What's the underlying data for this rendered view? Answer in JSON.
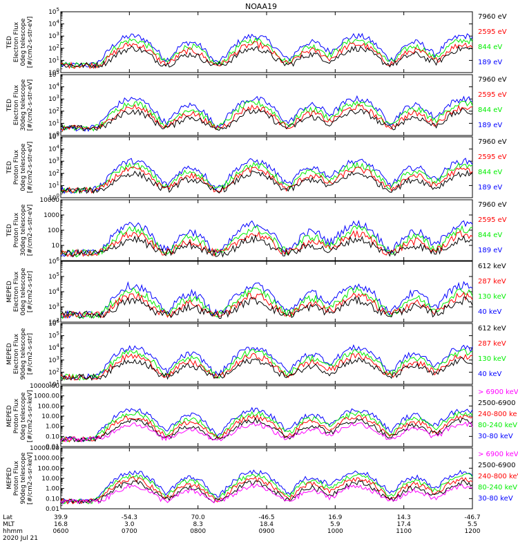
{
  "title": "NOAA19",
  "colors": {
    "black": "#000000",
    "red": "#ff0000",
    "green": "#00ee00",
    "blue": "#0000ff",
    "magenta": "#ff00ff"
  },
  "chart_data": [
    {
      "type": "line",
      "ylabel": [
        "TED",
        "Electron Flux",
        "0deg telescope",
        "[#/cm2-s-str-eV]"
      ],
      "yscale": "log",
      "ylim": [
        1,
        100000
      ],
      "ticks": [
        {
          "v": 1,
          "t": "10",
          "s": "0"
        },
        {
          "v": 10,
          "t": "10",
          "s": "1"
        },
        {
          "v": 100,
          "t": "10",
          "s": "2"
        },
        {
          "v": 1000,
          "t": "10",
          "s": "3"
        },
        {
          "v": 10000,
          "t": "10",
          "s": "4"
        },
        {
          "v": 100000,
          "t": "10",
          "s": "5"
        }
      ],
      "series": [
        {
          "name": "7960 eV",
          "color": "black"
        },
        {
          "name": "2595 eV",
          "color": "red"
        },
        {
          "name": "844 eV",
          "color": "green"
        },
        {
          "name": "189 eV",
          "color": "blue"
        }
      ]
    },
    {
      "type": "line",
      "ylabel": [
        "TED",
        "Electron Flux",
        "30deg telescope",
        "[#/cm2-s-str-eV]"
      ],
      "yscale": "log",
      "ylim": [
        1,
        100000
      ],
      "ticks": [
        {
          "v": 1,
          "t": "10",
          "s": "0"
        },
        {
          "v": 10,
          "t": "10",
          "s": "1"
        },
        {
          "v": 100,
          "t": "10",
          "s": "2"
        },
        {
          "v": 1000,
          "t": "10",
          "s": "3"
        },
        {
          "v": 10000,
          "t": "10",
          "s": "4"
        },
        {
          "v": 100000,
          "t": "10",
          "s": "5"
        }
      ],
      "series": [
        {
          "name": "7960 eV",
          "color": "black"
        },
        {
          "name": "2595 eV",
          "color": "red"
        },
        {
          "name": "844 eV",
          "color": "green"
        },
        {
          "name": "189 eV",
          "color": "blue"
        }
      ]
    },
    {
      "type": "line",
      "ylabel": [
        "TED",
        "Proton Flux",
        "0deg telescope",
        "[#/cm2-s-str-eV]"
      ],
      "yscale": "log",
      "ylim": [
        1,
        100000
      ],
      "ticks": [
        {
          "v": 1,
          "t": "10",
          "s": "0"
        },
        {
          "v": 10,
          "t": "10",
          "s": "1"
        },
        {
          "v": 100,
          "t": "10",
          "s": "2"
        },
        {
          "v": 1000,
          "t": "10",
          "s": "3"
        },
        {
          "v": 10000,
          "t": "10",
          "s": "4"
        },
        {
          "v": 100000,
          "t": "10",
          "s": "5"
        }
      ],
      "series": [
        {
          "name": "7960 eV",
          "color": "black"
        },
        {
          "name": "2595 eV",
          "color": "red"
        },
        {
          "name": "844 eV",
          "color": "green"
        },
        {
          "name": "189 eV",
          "color": "blue"
        }
      ]
    },
    {
      "type": "line",
      "ylabel": [
        "TED",
        "Proton Flux",
        "30deg telescope",
        "[#/cm2-s-str-eV]"
      ],
      "yscale": "log",
      "ylim": [
        1,
        10000
      ],
      "ticks": [
        {
          "v": 10,
          "t": "10",
          "s": ""
        },
        {
          "v": 100,
          "t": "100",
          "s": ""
        },
        {
          "v": 1000,
          "t": "1000",
          "s": ""
        },
        {
          "v": 10000,
          "t": "10000",
          "s": ""
        }
      ],
      "series": [
        {
          "name": "7960 eV",
          "color": "black"
        },
        {
          "name": "2595 eV",
          "color": "red"
        },
        {
          "name": "844 eV",
          "color": "green"
        },
        {
          "name": "189 eV",
          "color": "blue"
        }
      ]
    },
    {
      "type": "line",
      "ylabel": [
        "MEPED",
        "Electron Flux",
        "0deg telescope",
        "[#/cm2-s-str]"
      ],
      "yscale": "log",
      "ylim": [
        100,
        1000000
      ],
      "ticks": [
        {
          "v": 100,
          "t": "10",
          "s": "2"
        },
        {
          "v": 1000,
          "t": "10",
          "s": "3"
        },
        {
          "v": 10000,
          "t": "10",
          "s": "4"
        },
        {
          "v": 100000,
          "t": "10",
          "s": "5"
        },
        {
          "v": 1000000,
          "t": "10",
          "s": "6"
        }
      ],
      "series": [
        {
          "name": "612 keV",
          "color": "black"
        },
        {
          "name": "287 keV",
          "color": "red"
        },
        {
          "name": "130 keV",
          "color": "green"
        },
        {
          "name": "40 keV",
          "color": "blue"
        }
      ]
    },
    {
      "type": "line",
      "ylabel": [
        "MEPED",
        "Electron Flux",
        "90deg telescope",
        "[#/cm2-s-str]"
      ],
      "yscale": "log",
      "ylim": [
        10,
        1000000
      ],
      "ticks": [
        {
          "v": 10,
          "t": "10",
          "s": "1"
        },
        {
          "v": 100,
          "t": "10",
          "s": "2"
        },
        {
          "v": 1000,
          "t": "10",
          "s": "3"
        },
        {
          "v": 10000,
          "t": "10",
          "s": "4"
        },
        {
          "v": 100000,
          "t": "10",
          "s": "5"
        },
        {
          "v": 1000000,
          "t": "10",
          "s": "6"
        }
      ],
      "series": [
        {
          "name": "612 keV",
          "color": "black"
        },
        {
          "name": "287 keV",
          "color": "red"
        },
        {
          "name": "130 keV",
          "color": "green"
        },
        {
          "name": "40 keV",
          "color": "blue"
        }
      ]
    },
    {
      "type": "line",
      "ylabel": [
        "MEPED",
        "Proton Flux",
        "0deg telescope",
        "[#/cm2-s-sr-keV]"
      ],
      "yscale": "log",
      "ylim": [
        0.01,
        10000
      ],
      "ticks": [
        {
          "v": 0.01,
          "t": "0.01",
          "s": ""
        },
        {
          "v": 0.1,
          "t": "0.10",
          "s": ""
        },
        {
          "v": 1,
          "t": "1.00",
          "s": ""
        },
        {
          "v": 10,
          "t": "10.00",
          "s": ""
        },
        {
          "v": 100,
          "t": "100.00",
          "s": ""
        },
        {
          "v": 1000,
          "t": "1000.00",
          "s": ""
        },
        {
          "v": 10000,
          "t": "10000.00",
          "s": ""
        }
      ],
      "series": [
        {
          "name": "> 6900 keV",
          "color": "magenta"
        },
        {
          "name": "2500-6900",
          "color": "black"
        },
        {
          "name": "240-800 ke",
          "color": "red"
        },
        {
          "name": "80-240 keV",
          "color": "green"
        },
        {
          "name": "30-80 keV",
          "color": "blue"
        }
      ]
    },
    {
      "type": "line",
      "ylabel": [
        "MEPED",
        "Proton Flux",
        "90deg telescope",
        "[#/cm2-s-sr-keV]"
      ],
      "yscale": "log",
      "ylim": [
        0.01,
        10000
      ],
      "ticks": [
        {
          "v": 0.01,
          "t": "0.01",
          "s": ""
        },
        {
          "v": 0.1,
          "t": "0.10",
          "s": ""
        },
        {
          "v": 1,
          "t": "1.00",
          "s": ""
        },
        {
          "v": 10,
          "t": "10.00",
          "s": ""
        },
        {
          "v": 100,
          "t": "100.00",
          "s": ""
        },
        {
          "v": 1000,
          "t": "1000.00",
          "s": ""
        },
        {
          "v": 10000,
          "t": "10000.00",
          "s": ""
        }
      ],
      "series": [
        {
          "name": "> 6900 keV",
          "color": "magenta"
        },
        {
          "name": "2500-6900",
          "color": "black"
        },
        {
          "name": "240-800 keV",
          "color": "red"
        },
        {
          "name": "80-240 keV",
          "color": "green"
        },
        {
          "name": "30-80 keV",
          "color": "blue"
        }
      ]
    }
  ],
  "x_axis": {
    "range": [
      "0600",
      "1200"
    ],
    "row_labels": [
      "Lat",
      "MLT",
      "hhmm"
    ],
    "ticks": [
      {
        "lat": "39.9",
        "mlt": "16.8",
        "hhmm": "0600"
      },
      {
        "lat": "-54.3",
        "mlt": "3.0",
        "hhmm": "0700"
      },
      {
        "lat": "70.0",
        "mlt": "8.3",
        "hhmm": "0800"
      },
      {
        "lat": "-46.5",
        "mlt": "18.4",
        "hhmm": "0900"
      },
      {
        "lat": "16.9",
        "mlt": "5.9",
        "hhmm": "1000"
      },
      {
        "lat": "14.3",
        "mlt": "17.4",
        "hhmm": "1100"
      },
      {
        "lat": "-46.7",
        "mlt": "5.5",
        "hhmm": "1200"
      }
    ],
    "date": "2020 Jul 21"
  }
}
